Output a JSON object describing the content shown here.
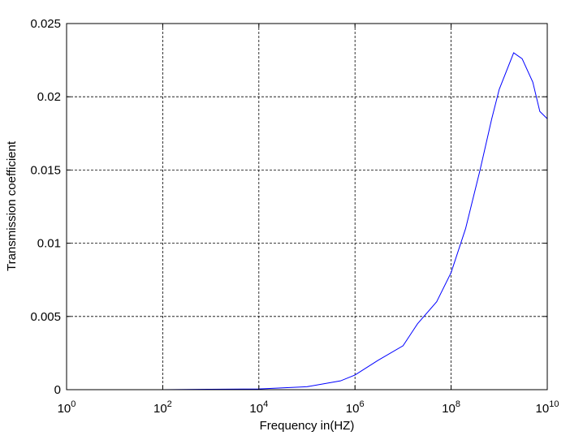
{
  "chart_data": {
    "type": "line",
    "xlabel": "Frequency in(HZ)",
    "ylabel": "Transmission coefficient",
    "xscale": "log",
    "xlim": [
      1,
      10000000000
    ],
    "ylim": [
      0,
      0.025
    ],
    "grid": true,
    "x_ticks": [
      {
        "base": "10",
        "exp": "0",
        "value": 1
      },
      {
        "base": "10",
        "exp": "2",
        "value": 100
      },
      {
        "base": "10",
        "exp": "4",
        "value": 10000
      },
      {
        "base": "10",
        "exp": "6",
        "value": 1000000
      },
      {
        "base": "10",
        "exp": "8",
        "value": 100000000
      },
      {
        "base": "10",
        "exp": "10",
        "value": 10000000000
      }
    ],
    "y_ticks": [
      {
        "label": "0",
        "value": 0
      },
      {
        "label": "0.005",
        "value": 0.005
      },
      {
        "label": "0.01",
        "value": 0.01
      },
      {
        "label": "0.015",
        "value": 0.015
      },
      {
        "label": "0.02",
        "value": 0.02
      },
      {
        "label": "0.025",
        "value": 0.025
      }
    ],
    "series": [
      {
        "color": "#0000ff",
        "x": [
          20,
          100,
          1000,
          10000,
          100000,
          500000,
          1000000,
          3000000,
          10000000,
          20000000,
          50000000,
          100000000,
          200000000,
          400000000,
          700000000,
          1000000000,
          2000000000,
          3000000000,
          5000000000,
          7000000000,
          10000000000
        ],
        "y": [
          0.0,
          0.0,
          3e-05,
          5e-05,
          0.0002,
          0.0006,
          0.001,
          0.002,
          0.003,
          0.0045,
          0.006,
          0.008,
          0.011,
          0.015,
          0.0185,
          0.0205,
          0.023,
          0.0226,
          0.021,
          0.019,
          0.0185
        ]
      }
    ]
  }
}
